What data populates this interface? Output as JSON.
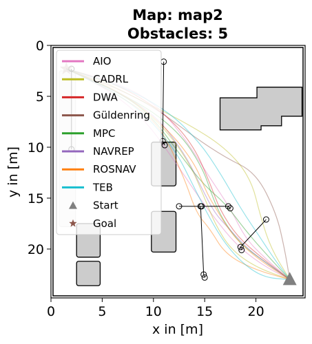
{
  "chart_data": {
    "type": "line",
    "title_line1": "Map: map2",
    "title_line2": "Obstacles: 5",
    "xlabel": "x in [m]",
    "ylabel": "y in [m]",
    "xlim": [
      0,
      24.8
    ],
    "ylim": [
      24.8,
      0
    ],
    "y_inverted": true,
    "xticks": [
      0,
      5,
      10,
      15,
      20
    ],
    "yticks": [
      0,
      5,
      10,
      15,
      20
    ],
    "grid": false,
    "legend_placement": "upper-left",
    "legend": [
      {
        "name": "AIO",
        "color": "#e377c2",
        "marker": "line"
      },
      {
        "name": "CADRL",
        "color": "#bcbd22",
        "marker": "line"
      },
      {
        "name": "DWA",
        "color": "#d62728",
        "marker": "line"
      },
      {
        "name": "Güldenring",
        "color": "#8c564b",
        "marker": "line"
      },
      {
        "name": "MPC",
        "color": "#2ca02c",
        "marker": "line"
      },
      {
        "name": "NAVREP",
        "color": "#9467bd",
        "marker": "line"
      },
      {
        "name": "ROSNAV",
        "color": "#ff7f0e",
        "marker": "line"
      },
      {
        "name": "TEB",
        "color": "#17becf",
        "marker": "line"
      },
      {
        "name": "Start",
        "color": "#808080",
        "marker": "triangle"
      },
      {
        "name": "Goal",
        "color": "#8c564b",
        "marker": "star"
      }
    ],
    "start": {
      "x": 23.3,
      "y": 23.0
    },
    "goal": {
      "x": 1.5,
      "y": 2.3
    },
    "static_obstacles": [
      {
        "x0": 16.5,
        "x1": 24.5,
        "y0": 4.1,
        "y1": 8.3,
        "shape": "stepped"
      },
      {
        "x0": 9.8,
        "x1": 12.2,
        "y0": 9.5,
        "y1": 13.8
      },
      {
        "x0": 9.8,
        "x1": 12.2,
        "y0": 16.3,
        "y1": 20.3
      },
      {
        "x0": 2.5,
        "x1": 4.8,
        "y0": 17.5,
        "y1": 20.8
      },
      {
        "x0": 2.5,
        "x1": 4.8,
        "y0": 21.2,
        "y1": 23.6
      },
      {
        "x0": 0.8,
        "x1": 2.4,
        "y0": 2.5,
        "y1": 17.8,
        "shape": "faded"
      }
    ],
    "dynamic_obstacles": [
      {
        "waypoints": [
          [
            11.0,
            1.6
          ],
          [
            10.9,
            9.4
          ],
          [
            11.1,
            9.8
          ]
        ]
      },
      {
        "waypoints": [
          [
            2.0,
            2.3
          ],
          [
            2.0,
            10.2
          ]
        ]
      },
      {
        "waypoints": [
          [
            12.5,
            15.8
          ],
          [
            14.7,
            15.8
          ],
          [
            17.3,
            15.8
          ],
          [
            17.5,
            16.0
          ]
        ]
      },
      {
        "waypoints": [
          [
            14.6,
            15.8
          ],
          [
            14.9,
            22.5
          ],
          [
            15.0,
            22.8
          ]
        ]
      },
      {
        "waypoints": [
          [
            21.0,
            17.1
          ],
          [
            18.5,
            19.8
          ],
          [
            18.6,
            20.1
          ]
        ]
      }
    ],
    "series": [
      {
        "color": "#e377c2",
        "points": [
          [
            23.3,
            23.0
          ],
          [
            21.0,
            21.0
          ],
          [
            19.0,
            19.0
          ],
          [
            17.5,
            16.0
          ],
          [
            15.5,
            13.0
          ],
          [
            13.0,
            9.0
          ],
          [
            10.0,
            5.5
          ],
          [
            6.0,
            3.5
          ],
          [
            1.5,
            2.3
          ]
        ]
      },
      {
        "color": "#e377c2",
        "points": [
          [
            23.3,
            23.0
          ],
          [
            20.5,
            21.5
          ],
          [
            18.0,
            19.5
          ],
          [
            16.0,
            17.0
          ],
          [
            14.5,
            15.0
          ],
          [
            12.5,
            12.0
          ],
          [
            9.0,
            7.0
          ],
          [
            5.0,
            4.0
          ],
          [
            1.5,
            2.3
          ]
        ]
      },
      {
        "color": "#bcbd22",
        "points": [
          [
            23.3,
            23.0
          ],
          [
            20.0,
            21.8
          ],
          [
            17.5,
            20.0
          ],
          [
            16.0,
            17.5
          ],
          [
            15.0,
            15.0
          ],
          [
            13.5,
            11.5
          ],
          [
            11.0,
            8.0
          ],
          [
            7.5,
            5.0
          ],
          [
            1.5,
            2.3
          ]
        ]
      },
      {
        "color": "#bcbd22",
        "points": [
          [
            23.3,
            23.0
          ],
          [
            21.5,
            20.0
          ],
          [
            20.5,
            17.0
          ],
          [
            19.5,
            13.0
          ],
          [
            17.0,
            10.0
          ],
          [
            13.0,
            7.5
          ],
          [
            8.0,
            5.0
          ],
          [
            4.0,
            3.0
          ],
          [
            1.5,
            2.3
          ]
        ]
      },
      {
        "color": "#d62728",
        "points": [
          [
            23.3,
            23.0
          ],
          [
            20.5,
            20.8
          ],
          [
            18.2,
            18.8
          ],
          [
            16.5,
            16.2
          ],
          [
            15.5,
            13.5
          ],
          [
            14.0,
            10.0
          ],
          [
            11.5,
            7.0
          ],
          [
            7.0,
            4.0
          ],
          [
            1.5,
            2.3
          ]
        ]
      },
      {
        "color": "#8c564b",
        "points": [
          [
            23.3,
            23.0
          ],
          [
            22.8,
            20.0
          ],
          [
            22.0,
            16.5
          ],
          [
            20.0,
            12.5
          ],
          [
            17.0,
            11.0
          ],
          [
            14.0,
            9.0
          ],
          [
            10.0,
            6.0
          ],
          [
            6.0,
            4.0
          ],
          [
            1.5,
            2.3
          ]
        ]
      },
      {
        "color": "#2ca02c",
        "points": [
          [
            23.3,
            23.0
          ],
          [
            20.8,
            21.2
          ],
          [
            18.5,
            19.5
          ],
          [
            16.8,
            17.2
          ],
          [
            15.8,
            15.0
          ],
          [
            14.8,
            12.0
          ],
          [
            12.5,
            8.5
          ],
          [
            8.5,
            5.5
          ],
          [
            1.5,
            2.3
          ]
        ]
      },
      {
        "color": "#2ca02c",
        "points": [
          [
            23.3,
            23.0
          ],
          [
            21.0,
            20.5
          ],
          [
            19.0,
            18.2
          ],
          [
            17.0,
            15.5
          ],
          [
            15.0,
            13.8
          ],
          [
            12.8,
            11.0
          ],
          [
            9.5,
            6.5
          ],
          [
            5.5,
            4.0
          ],
          [
            1.5,
            2.3
          ]
        ]
      },
      {
        "color": "#9467bd",
        "points": [
          [
            23.3,
            23.0
          ],
          [
            21.2,
            21.5
          ],
          [
            19.2,
            20.0
          ],
          [
            17.2,
            17.8
          ],
          [
            16.0,
            16.5
          ],
          [
            14.8,
            14.2
          ],
          [
            13.0,
            10.5
          ],
          [
            9.5,
            6.0
          ],
          [
            1.5,
            2.3
          ]
        ]
      },
      {
        "color": "#ff7f0e",
        "points": [
          [
            23.3,
            23.0
          ],
          [
            20.2,
            21.0
          ],
          [
            17.8,
            18.8
          ],
          [
            16.2,
            16.2
          ],
          [
            15.2,
            14.5
          ],
          [
            14.0,
            11.5
          ],
          [
            11.2,
            8.0
          ],
          [
            6.8,
            4.5
          ],
          [
            1.5,
            2.3
          ]
        ]
      },
      {
        "color": "#ff7f0e",
        "points": [
          [
            23.3,
            23.0
          ],
          [
            19.8,
            22.0
          ],
          [
            17.0,
            20.5
          ],
          [
            15.5,
            18.0
          ],
          [
            14.2,
            16.5
          ],
          [
            13.0,
            13.0
          ],
          [
            10.5,
            7.5
          ],
          [
            6.0,
            4.5
          ],
          [
            1.5,
            2.3
          ]
        ]
      },
      {
        "color": "#17becf",
        "points": [
          [
            23.3,
            23.0
          ],
          [
            20.8,
            22.8
          ],
          [
            18.8,
            21.5
          ],
          [
            17.0,
            19.5
          ],
          [
            15.5,
            17.0
          ],
          [
            14.0,
            14.0
          ],
          [
            12.0,
            10.0
          ],
          [
            8.0,
            5.5
          ],
          [
            1.5,
            2.3
          ]
        ]
      },
      {
        "color": "#17becf",
        "points": [
          [
            23.3,
            23.0
          ],
          [
            21.8,
            21.0
          ],
          [
            20.5,
            19.0
          ],
          [
            18.5,
            16.0
          ],
          [
            16.5,
            12.5
          ],
          [
            14.5,
            9.5
          ],
          [
            11.5,
            6.5
          ],
          [
            7.0,
            4.0
          ],
          [
            1.5,
            2.3
          ]
        ]
      }
    ]
  }
}
